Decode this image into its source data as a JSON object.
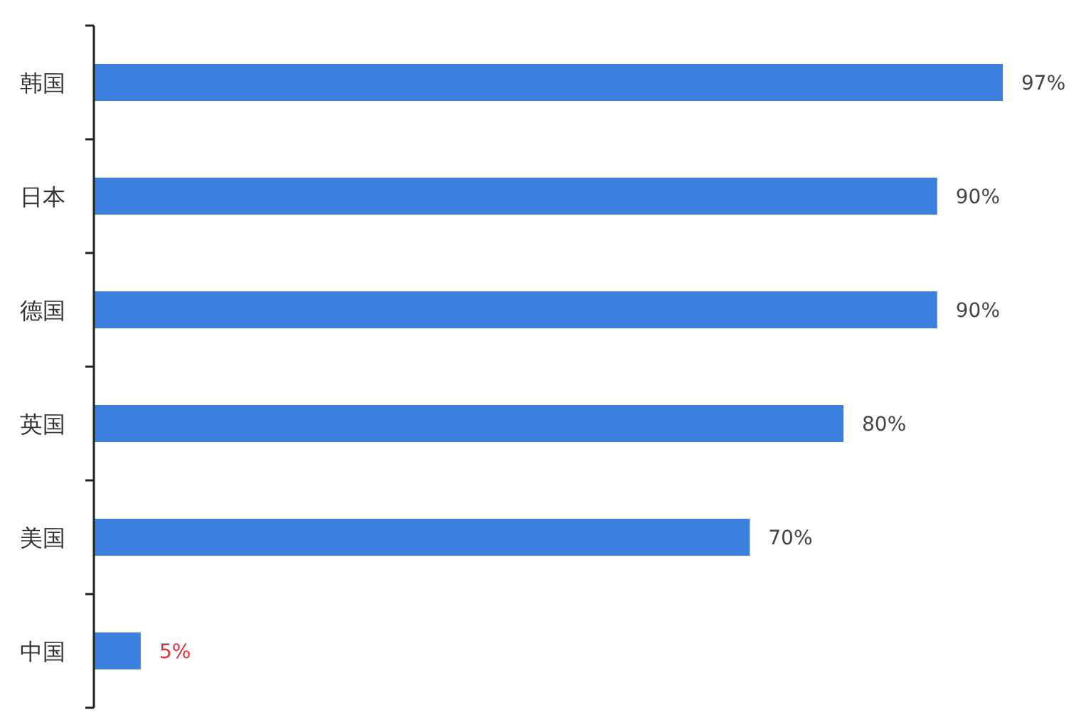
{
  "chart_data": {
    "type": "bar",
    "orientation": "horizontal",
    "tick_labels": "y",
    "categories": [
      "韩国",
      "日本",
      "德国",
      "英国",
      "美国",
      "中国"
    ],
    "values": [
      97,
      90,
      90,
      80,
      70,
      5
    ],
    "color": "#3b80de",
    "value_labels": [
      "97%",
      "90%",
      "90%",
      "80%",
      "70%",
      null
    ],
    "annotations": [
      {
        "text": "5%",
        "x": 5,
        "y": "中国"
      }
    ]
  }
}
